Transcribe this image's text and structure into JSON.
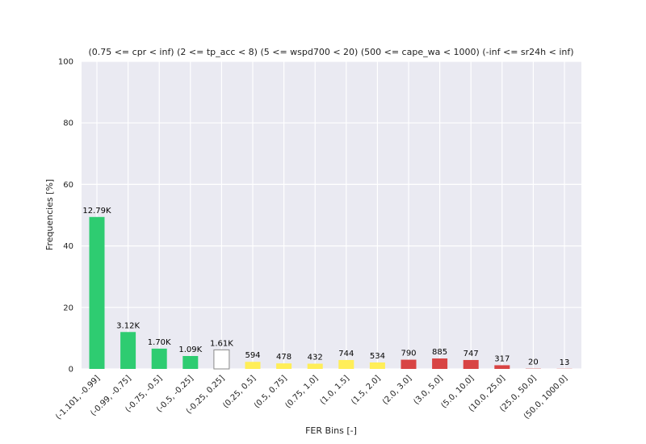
{
  "chart_data": {
    "type": "bar",
    "title": "(0.75 <= cpr < inf) (2 <= tp_acc < 8) (5 <= wspd700 < 20) (500 <= cape_wa < 1000) (-inf <= sr24h < inf)",
    "xlabel": "FER Bins [-]",
    "ylabel": "Frequencies [%]",
    "ylim": [
      0,
      100
    ],
    "yticks": [
      0,
      20,
      40,
      60,
      80,
      100
    ],
    "grid": true,
    "categories": [
      "(-1.101, -0.99]",
      "(-0.99, -0.75]",
      "(-0.75, -0.5]",
      "(-0.5, -0.25]",
      "(-0.25, 0.25]",
      "(0.25, 0.5]",
      "(0.5, 0.75]",
      "(0.75, 1.0]",
      "(1.0, 1.5]",
      "(1.5, 2.0]",
      "(2.0, 3.0]",
      "(3.0, 5.0]",
      "(5.0, 10.0]",
      "(10.0, 25.0]",
      "(25.0, 50.0]",
      "(50.0, 1000.0]"
    ],
    "values": [
      49.4,
      12.0,
      6.6,
      4.2,
      6.2,
      2.3,
      1.8,
      1.7,
      2.9,
      2.1,
      3.0,
      3.4,
      2.9,
      1.2,
      0.08,
      0.05
    ],
    "labels": [
      "12.79K",
      "3.12K",
      "1.70K",
      "1.09K",
      "1.61K",
      "594",
      "478",
      "432",
      "744",
      "534",
      "790",
      "885",
      "747",
      "317",
      "20",
      "13"
    ],
    "colors": [
      "#2ecc71",
      "#2ecc71",
      "#2ecc71",
      "#2ecc71",
      "#ffffff",
      "#ffee58",
      "#ffee58",
      "#ffee58",
      "#ffee58",
      "#ffee58",
      "#d84444",
      "#d84444",
      "#d84444",
      "#d84444",
      "#d84444",
      "#d84444"
    ]
  }
}
